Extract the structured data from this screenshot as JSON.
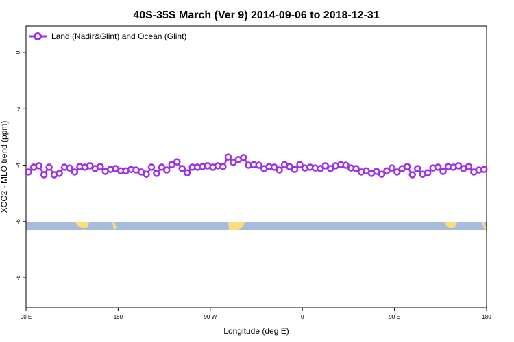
{
  "chart_data": {
    "type": "line",
    "title": "40S-35S March (Ver 9)   2014-09-06 to 2018-12-31",
    "xlabel": "Longitude (deg E)",
    "ylabel": "XCO2 - MLO trend (ppm)",
    "xlim": [
      90,
      540
    ],
    "ylim": [
      -9.07,
      0.95
    ],
    "xticks": [
      {
        "value": 90,
        "label": "90 E"
      },
      180,
      {
        "value": 270,
        "label": "90 W"
      },
      {
        "value": 360,
        "label": "0"
      },
      {
        "value": 450,
        "label": "90 E"
      },
      {
        "value": 540,
        "label": "180"
      }
    ],
    "yticks": [
      0,
      -2,
      -4,
      -6,
      -8
    ],
    "legend": "upper left",
    "x": [
      92.5,
      97.5,
      102.5,
      107.5,
      112.5,
      117.5,
      122.5,
      127.5,
      132.5,
      137.5,
      142.5,
      147.5,
      152.5,
      157.5,
      162.5,
      167.5,
      172.5,
      177.5,
      182.5,
      187.5,
      192.5,
      197.5,
      202.5,
      207.5,
      212.5,
      217.5,
      222.5,
      227.5,
      232.5,
      237.5,
      242.5,
      247.5,
      252.5,
      257.5,
      262.5,
      267.5,
      272.5,
      277.5,
      282.5,
      287.5,
      292.5,
      297.5,
      302.5,
      307.5,
      312.5,
      317.5,
      322.5,
      327.5,
      332.5,
      337.5,
      342.5,
      347.5,
      352.5,
      357.5,
      362.5,
      367.5,
      372.5,
      377.5,
      382.5,
      387.5,
      392.5,
      397.5,
      402.5,
      407.5,
      412.5,
      417.5,
      422.5,
      427.5,
      432.5,
      437.5,
      442.5,
      447.5,
      452.5,
      457.5,
      462.5,
      467.5,
      472.5,
      477.5,
      482.5,
      487.5,
      492.5,
      497.5,
      502.5,
      507.5,
      512.5,
      517.5,
      522.5,
      527.5,
      532.5,
      537.5
    ],
    "series": [
      {
        "name": "Land (Nadir&Glint) and Ocean (Glint)",
        "color": "#9b30e8",
        "values": [
          -4.24,
          -4.07,
          -4.02,
          -4.34,
          -4.07,
          -4.34,
          -4.29,
          -4.07,
          -4.1,
          -4.24,
          -4.05,
          -4.07,
          -4.02,
          -4.12,
          -4.05,
          -4.22,
          -4.15,
          -4.12,
          -4.2,
          -4.2,
          -4.15,
          -4.17,
          -4.24,
          -4.32,
          -4.07,
          -4.29,
          -4.07,
          -4.17,
          -3.98,
          -3.88,
          -4.12,
          -4.27,
          -4.07,
          -4.07,
          -4.05,
          -4.02,
          -4.07,
          -4.02,
          -4.05,
          -3.71,
          -3.9,
          -3.8,
          -3.73,
          -4.0,
          -3.98,
          -4.0,
          -4.12,
          -4.05,
          -4.07,
          -4.17,
          -3.98,
          -4.05,
          -4.15,
          -3.98,
          -4.1,
          -4.07,
          -4.1,
          -4.12,
          -4.02,
          -4.12,
          -4.02,
          -3.98,
          -4.0,
          -4.1,
          -4.12,
          -4.24,
          -4.2,
          -4.29,
          -4.22,
          -4.32,
          -4.2,
          -4.1,
          -4.24,
          -4.12,
          -4.05,
          -4.34,
          -4.12,
          -4.32,
          -4.27,
          -4.1,
          -4.07,
          -4.22,
          -4.05,
          -4.07,
          -4.02,
          -4.12,
          -4.05,
          -4.24,
          -4.17,
          -4.15
        ]
      }
    ]
  }
}
